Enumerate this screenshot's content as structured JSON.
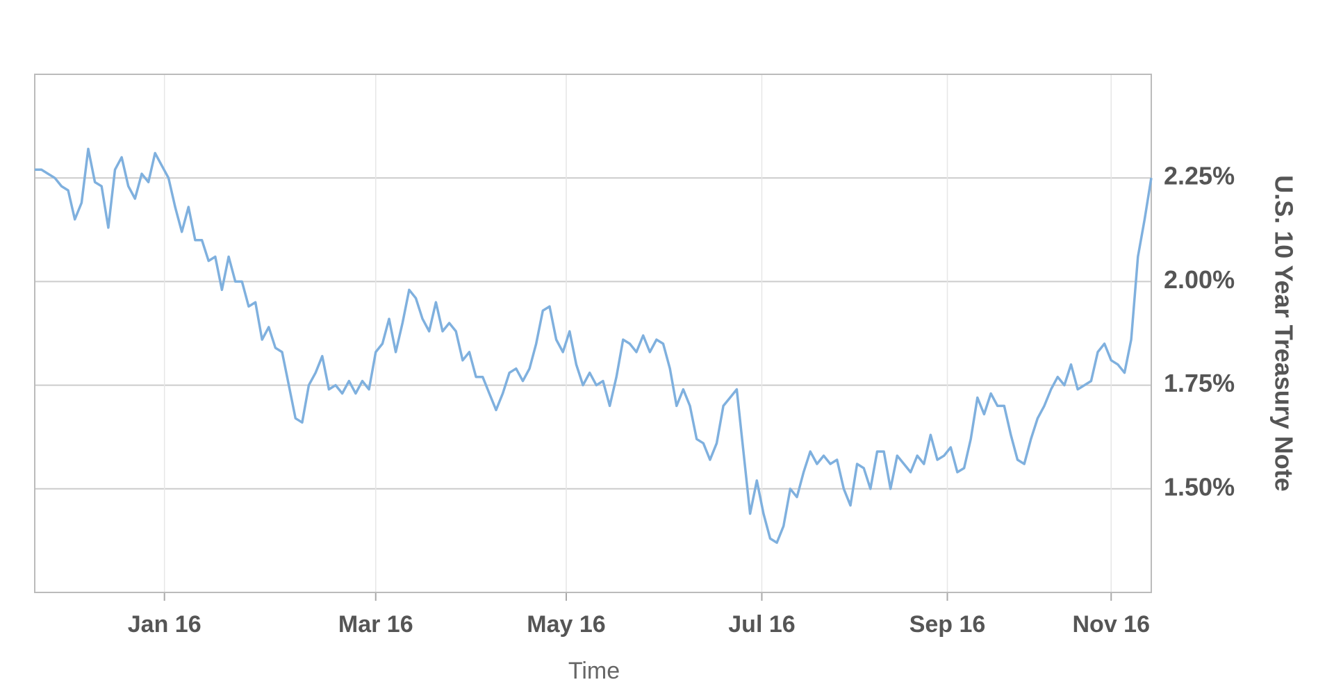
{
  "chart_data": {
    "type": "line",
    "x_label": "Time",
    "y_label": "U.S. 10 Year Treasury Note",
    "color": "#7fb0de",
    "grid": true,
    "y_axis_side": "right",
    "values": [
      2.27,
      2.27,
      2.26,
      2.25,
      2.23,
      2.22,
      2.15,
      2.19,
      2.32,
      2.24,
      2.23,
      2.13,
      2.27,
      2.3,
      2.23,
      2.2,
      2.26,
      2.24,
      2.31,
      2.28,
      2.25,
      2.18,
      2.12,
      2.18,
      2.1,
      2.1,
      2.05,
      2.06,
      1.98,
      2.06,
      2.0,
      2.0,
      1.94,
      1.95,
      1.86,
      1.89,
      1.84,
      1.83,
      1.75,
      1.67,
      1.66,
      1.75,
      1.78,
      1.82,
      1.74,
      1.75,
      1.73,
      1.76,
      1.73,
      1.76,
      1.74,
      1.83,
      1.85,
      1.91,
      1.83,
      1.9,
      1.98,
      1.96,
      1.91,
      1.88,
      1.95,
      1.88,
      1.9,
      1.88,
      1.81,
      1.83,
      1.77,
      1.77,
      1.73,
      1.69,
      1.73,
      1.78,
      1.79,
      1.76,
      1.79,
      1.85,
      1.93,
      1.94,
      1.86,
      1.83,
      1.88,
      1.8,
      1.75,
      1.78,
      1.75,
      1.76,
      1.7,
      1.77,
      1.86,
      1.85,
      1.83,
      1.87,
      1.83,
      1.86,
      1.85,
      1.79,
      1.7,
      1.74,
      1.7,
      1.62,
      1.61,
      1.57,
      1.61,
      1.7,
      1.72,
      1.74,
      1.59,
      1.44,
      1.52,
      1.44,
      1.38,
      1.37,
      1.41,
      1.5,
      1.48,
      1.54,
      1.59,
      1.56,
      1.58,
      1.56,
      1.57,
      1.5,
      1.46,
      1.56,
      1.55,
      1.5,
      1.59,
      1.59,
      1.5,
      1.58,
      1.56,
      1.54,
      1.58,
      1.56,
      1.63,
      1.57,
      1.58,
      1.6,
      1.54,
      1.55,
      1.62,
      1.72,
      1.68,
      1.73,
      1.7,
      1.7,
      1.63,
      1.57,
      1.56,
      1.62,
      1.67,
      1.7,
      1.74,
      1.77,
      1.75,
      1.8,
      1.74,
      1.75,
      1.76,
      1.83,
      1.85,
      1.81,
      1.8,
      1.78,
      1.86,
      2.06,
      2.15,
      2.25
    ],
    "xlim": [
      0,
      167
    ],
    "xticks": [
      {
        "value": 19.4,
        "label": "Jan 16"
      },
      {
        "value": 51,
        "label": "Mar 16"
      },
      {
        "value": 79.5,
        "label": "May 16"
      },
      {
        "value": 108.75,
        "label": "Jul 16"
      },
      {
        "value": 136.5,
        "label": "Sep 16"
      },
      {
        "value": 161,
        "label": "Nov 16"
      }
    ],
    "ylim": [
      1.25,
      2.5
    ],
    "yticks": [
      {
        "value": 1.5,
        "label": "1.50%"
      },
      {
        "value": 1.75,
        "label": "1.75%"
      },
      {
        "value": 2.0,
        "label": "2.00%"
      },
      {
        "value": 2.25,
        "label": "2.25%"
      }
    ]
  }
}
